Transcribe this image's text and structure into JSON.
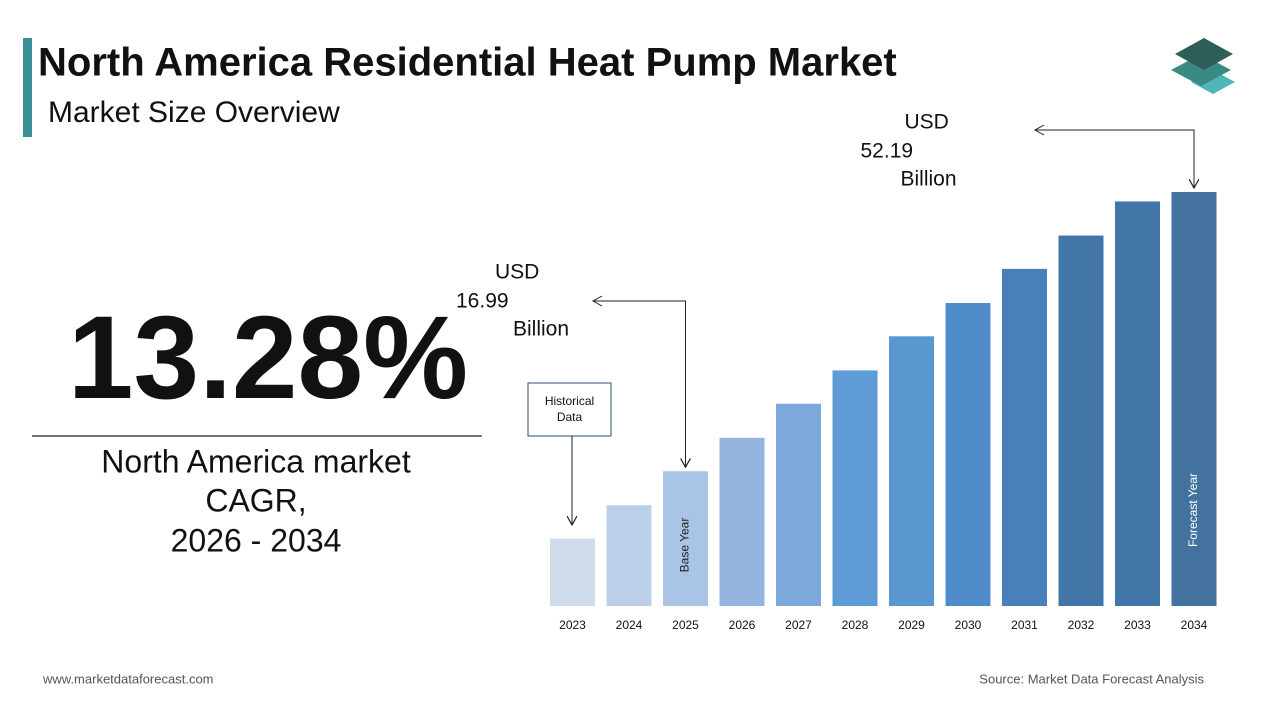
{
  "title": "North America Residential Heat Pump Market",
  "subtitle": "Market Size Overview",
  "cagr": "13.28%",
  "cagr_caption": [
    "North America market",
    "CAGR,",
    "2026 - 2034"
  ],
  "footer_left": "www.marketdataforecast.com",
  "footer_right": "Source: Market Data Forecast Analysis",
  "chart_data": {
    "type": "bar",
    "categories": [
      "2023",
      "2024",
      "2025",
      "2026",
      "2027",
      "2028",
      "2029",
      "2030",
      "2031",
      "2032",
      "2033",
      "2034"
    ],
    "values": [
      8.5,
      12.7,
      16.99,
      21.2,
      25.5,
      29.7,
      34.0,
      38.2,
      42.5,
      46.7,
      51.0,
      52.19
    ],
    "colors": [
      "#d0dcec",
      "#bccfe9",
      "#aac4e6",
      "#93b5df",
      "#7ca8dc",
      "#5f9bd6",
      "#5a97d1",
      "#4f8bc8",
      "#4a80ba",
      "#4275a8",
      "#4275a8",
      "#44729f"
    ],
    "bar_labels": [
      null,
      null,
      "Base Year",
      null,
      null,
      null,
      null,
      null,
      null,
      null,
      null,
      "Forecast Year"
    ],
    "value_prefix": "USD",
    "value_unit": "Billion",
    "historical_note": [
      "Historical",
      "Data"
    ]
  }
}
